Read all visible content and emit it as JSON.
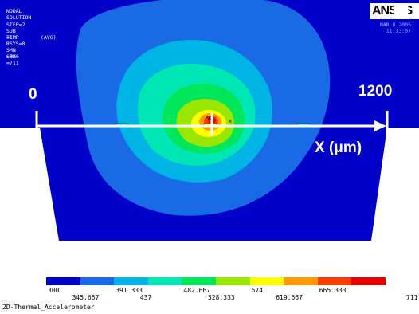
{
  "solution": {
    "title": "NODAL SOLUTION",
    "lines": [
      "STEP=2",
      "SUB =1",
      "TEMP       (AVG)",
      "RSYS=0",
      "SMN =300",
      "SMX =711"
    ]
  },
  "logo": {
    "text": "ANSYS"
  },
  "header_right": {
    "date": "MAR  8 2005",
    "time": "11:33:07"
  },
  "annotations": {
    "axis_start": "0",
    "axis_end": "1200",
    "axis_label": "X (μm)",
    "mx_label": "MX"
  },
  "legend": {
    "colors": [
      "#0000c8",
      "#1a6ae6",
      "#00b4e6",
      "#00e6b4",
      "#00e65a",
      "#9be600",
      "#ffff00",
      "#ff9a00",
      "#ff3c00",
      "#e60000"
    ],
    "top_labels": [
      "300",
      "391.333",
      "482.667",
      "574",
      "665.333"
    ],
    "bottom_labels": [
      "345.667",
      "437",
      "528.333",
      "619.667",
      "711"
    ]
  },
  "footer": {
    "caption": "2D-Thermal_Accelerometer"
  }
}
